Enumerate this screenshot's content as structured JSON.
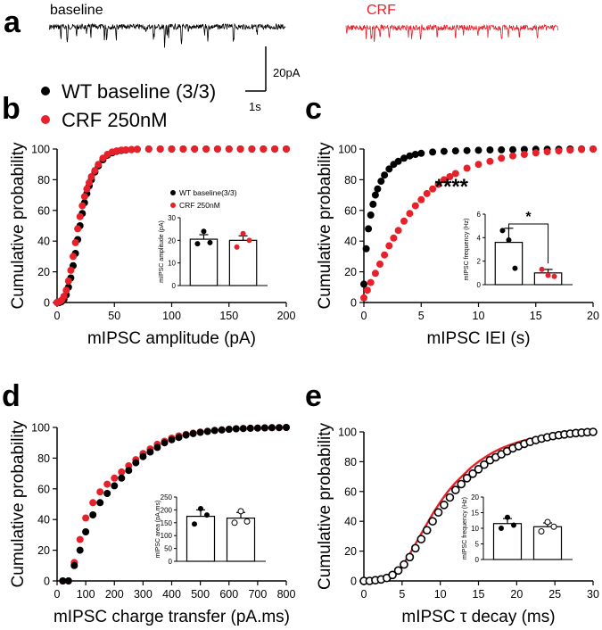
{
  "colors": {
    "wt": "#000000",
    "crf": "#e8202a",
    "axis": "#000000",
    "open_marker_fill": "#ffffff"
  },
  "panel_a": {
    "letter": "a",
    "traces": [
      {
        "label": "baseline",
        "color": "#000000"
      },
      {
        "label": "CRF",
        "color": "#e8202a"
      }
    ],
    "scalebar": {
      "y_label": "20pA",
      "x_label": "1s"
    }
  },
  "legend_main": [
    {
      "label": "WT baseline (3/3)",
      "color": "#000000"
    },
    {
      "label": "CRF 250nM",
      "color": "#e8202a"
    }
  ],
  "chart_data": [
    {
      "panel": "b",
      "type": "scatter",
      "xlabel": "mIPSC amplitude (pA)",
      "ylabel": "Cumulative probability",
      "xlim": [
        0,
        200
      ],
      "ylim": [
        0,
        100
      ],
      "xticks": [
        "0",
        "50",
        "100",
        "150",
        "200"
      ],
      "yticks": [
        "0",
        "20",
        "40",
        "60",
        "80",
        "100"
      ],
      "series": [
        {
          "name": "WT baseline (3/3)",
          "color": "#000000",
          "marker": "filled",
          "x": [
            0,
            2,
            4,
            6,
            8,
            10,
            12,
            14,
            16,
            18,
            20,
            22,
            24,
            26,
            28,
            30,
            33,
            36,
            40,
            44,
            48,
            52,
            56,
            60,
            65,
            70,
            80,
            90,
            100,
            110,
            120,
            130,
            140,
            150,
            160,
            170,
            180,
            190,
            200
          ],
          "y": [
            0,
            0,
            0.5,
            2,
            5,
            10,
            16,
            24,
            32,
            41,
            50,
            58,
            65,
            71,
            76,
            80,
            85,
            89,
            93,
            96,
            97.5,
            98.5,
            99,
            99.3,
            99.6,
            99.8,
            100,
            100,
            100,
            100,
            100,
            100,
            100,
            100,
            100,
            100,
            100,
            100,
            100
          ]
        },
        {
          "name": "CRF 250nM",
          "color": "#e8202a",
          "marker": "filled",
          "x": [
            0,
            2,
            4,
            6,
            8,
            10,
            12,
            14,
            16,
            18,
            20,
            22,
            24,
            26,
            28,
            30,
            33,
            36,
            40,
            44,
            48,
            52,
            56,
            60,
            65,
            70,
            80,
            90,
            100,
            110,
            120,
            130,
            140,
            150,
            160,
            170,
            180,
            190,
            200
          ],
          "y": [
            0,
            0.5,
            1.5,
            4,
            8,
            14,
            21,
            30,
            39,
            48,
            56,
            63,
            69,
            74,
            78,
            82,
            86,
            90,
            94,
            96.5,
            98,
            98.8,
            99.3,
            99.5,
            99.7,
            99.9,
            100,
            100,
            100,
            100,
            100,
            100,
            100,
            100,
            100,
            100,
            100,
            100,
            100
          ]
        }
      ],
      "inset": {
        "type": "bar",
        "ylabel": "mIPSC amplitude (pA)",
        "ylim": [
          0,
          30
        ],
        "yticks": [
          "0",
          "10",
          "20",
          "30"
        ],
        "legend": [
          "WT baseline(3/3)",
          "CRF 250nM"
        ],
        "categories": [
          "WT baseline(3/3)",
          "CRF 250nM"
        ],
        "values": [
          20.5,
          20
        ],
        "errors": [
          2,
          2
        ],
        "points": [
          [
            18.5,
            24,
            19
          ],
          [
            17,
            23,
            20
          ]
        ],
        "point_colors": [
          "#000000",
          "#e8202a"
        ],
        "point_style": "filled",
        "significance": ""
      }
    },
    {
      "panel": "c",
      "type": "scatter",
      "xlabel": "mIPSC IEI (s)",
      "ylabel": "Cumulative probability",
      "xlim": [
        0,
        20
      ],
      "ylim": [
        0,
        100
      ],
      "xticks": [
        "0",
        "5",
        "10",
        "15",
        "20"
      ],
      "yticks": [
        "0",
        "20",
        "40",
        "60",
        "80",
        "100"
      ],
      "annotation": "****",
      "series": [
        {
          "name": "WT baseline (3/3)",
          "color": "#000000",
          "marker": "filled",
          "x": [
            0,
            0.2,
            0.4,
            0.6,
            0.8,
            1,
            1.2,
            1.5,
            1.8,
            2.2,
            2.6,
            3,
            3.5,
            4,
            4.5,
            5,
            6,
            7,
            8,
            9,
            10,
            11,
            12,
            13,
            14,
            15,
            16,
            17,
            18,
            19,
            20
          ],
          "y": [
            12,
            35,
            48,
            57,
            64,
            70,
            74,
            79,
            83,
            87,
            90,
            92,
            94,
            95.5,
            96.5,
            97.2,
            98,
            98.5,
            98.8,
            99,
            99.2,
            99.4,
            99.5,
            99.6,
            99.7,
            99.8,
            99.9,
            99.9,
            100,
            100,
            100
          ]
        },
        {
          "name": "CRF 250nM",
          "color": "#e8202a",
          "marker": "filled",
          "x": [
            0,
            0.3,
            0.6,
            1,
            1.4,
            1.8,
            2.2,
            2.6,
            3,
            3.5,
            4,
            4.5,
            5,
            5.5,
            6,
            6.5,
            7,
            7.5,
            8,
            9,
            10,
            11,
            12,
            13,
            14,
            15,
            16,
            17,
            18,
            19,
            20
          ],
          "y": [
            3,
            8,
            13,
            19,
            25,
            31,
            37,
            42,
            47,
            53,
            58,
            63,
            67,
            71,
            74,
            77,
            80,
            82,
            84,
            87.5,
            90,
            92,
            94,
            95.5,
            96.5,
            97.5,
            98.2,
            98.8,
            99.3,
            99.7,
            100
          ]
        }
      ],
      "inset": {
        "type": "bar",
        "ylabel": "mIPSC frequency (Hz)",
        "ylim": [
          0,
          6
        ],
        "yticks": [
          "0",
          "2",
          "4",
          "6"
        ],
        "legend": [],
        "categories": [
          "WT baseline (3/3)",
          "CRF 250nM"
        ],
        "values": [
          3.6,
          1.0
        ],
        "errors": [
          1.2,
          0.3
        ],
        "points": [
          [
            4.6,
            3.8,
            1.4
          ],
          [
            1.3,
            0.8,
            0.7
          ]
        ],
        "point_colors": [
          "#000000",
          "#e8202a"
        ],
        "point_style": "filled",
        "significance": "*"
      }
    },
    {
      "panel": "d",
      "type": "scatter",
      "xlabel": "mIPSC charge transfer (pA.ms)",
      "ylabel": "Cumulative probability",
      "xlim": [
        0,
        800
      ],
      "ylim": [
        0,
        100
      ],
      "xticks": [
        "0",
        "100",
        "200",
        "300",
        "400",
        "500",
        "600",
        "700",
        "800"
      ],
      "yticks": [
        "0",
        "20",
        "40",
        "60",
        "80",
        "100"
      ],
      "series": [
        {
          "name": "CRF 250nM",
          "color": "#e8202a",
          "marker": "filled",
          "x": [
            20,
            40,
            60,
            80,
            100,
            125,
            150,
            175,
            200,
            225,
            250,
            275,
            300,
            325,
            350,
            375,
            400,
            425,
            450,
            475,
            500,
            525,
            550,
            575,
            600,
            625,
            650,
            675,
            700,
            725,
            750,
            775,
            800
          ],
          "y": [
            0,
            0,
            12,
            27,
            41,
            51,
            58,
            63,
            67,
            71,
            75,
            79,
            83,
            86,
            89,
            91,
            93,
            94.5,
            95.5,
            96.3,
            97,
            97.5,
            98,
            98.4,
            98.8,
            99.1,
            99.3,
            99.5,
            99.6,
            99.7,
            99.8,
            99.9,
            100
          ]
        },
        {
          "name": "WT baseline (3/3)",
          "color": "#000000",
          "marker": "filled",
          "x": [
            20,
            40,
            60,
            80,
            100,
            125,
            150,
            175,
            200,
            225,
            250,
            275,
            300,
            325,
            350,
            375,
            400,
            425,
            450,
            475,
            500,
            525,
            550,
            575,
            600,
            625,
            650,
            675,
            700,
            725,
            750,
            775,
            800
          ],
          "y": [
            0,
            0,
            10,
            20,
            32,
            43,
            51,
            57,
            62,
            67,
            72,
            77,
            81,
            84,
            87,
            90,
            92,
            93.5,
            95,
            96,
            96.8,
            97.4,
            98,
            98.4,
            98.8,
            99.1,
            99.3,
            99.5,
            99.6,
            99.7,
            99.8,
            99.9,
            100
          ]
        }
      ],
      "inset": {
        "type": "bar",
        "ylabel": "mIPSC area (pA.ms)",
        "ylim": [
          0,
          250
        ],
        "yticks": [
          "0",
          "50",
          "100",
          "150",
          "200",
          "250"
        ],
        "legend": [],
        "categories": [
          "WT baseline (3/3)",
          "CRF 250nM"
        ],
        "values": [
          175,
          168
        ],
        "errors": [
          25,
          22
        ],
        "points": [
          [
            145,
            205,
            180
          ],
          [
            150,
            195,
            155
          ]
        ],
        "point_colors": [
          "#000000",
          "#000000"
        ],
        "point_style": [
          "filled",
          "open"
        ],
        "significance": ""
      }
    },
    {
      "panel": "e",
      "type": "scatter",
      "xlabel": "mIPSC τ decay (ms)",
      "ylabel": "Cumulative probability",
      "xlim": [
        0,
        30
      ],
      "ylim": [
        0,
        100
      ],
      "xticks": [
        "0",
        "5",
        "10",
        "15",
        "20",
        "25",
        "30"
      ],
      "yticks": [
        "0",
        "20",
        "40",
        "60",
        "80",
        "100"
      ],
      "series": [
        {
          "name": "CRF 250nM",
          "color": "#e8202a",
          "marker": "line",
          "x": [
            0,
            1,
            2,
            3,
            4,
            5,
            6,
            7,
            8,
            9,
            10,
            11,
            12,
            13,
            14,
            15,
            16,
            17,
            18,
            19,
            20,
            21,
            22,
            23,
            24,
            25,
            26,
            27,
            28,
            29,
            30
          ],
          "y": [
            0,
            0.5,
            1,
            2,
            5,
            10,
            18,
            27,
            36,
            45,
            53,
            60,
            66,
            71,
            76,
            80,
            83.5,
            86.5,
            89,
            91,
            92.8,
            94.3,
            95.5,
            96.5,
            97.3,
            98,
            98.6,
            99.1,
            99.5,
            99.8,
            100
          ]
        },
        {
          "name": "WT baseline (3/3)",
          "color": "#000000",
          "marker": "open",
          "x": [
            0,
            0.75,
            1.5,
            2.25,
            3,
            3.75,
            4.5,
            5.25,
            6,
            6.75,
            7.5,
            8.25,
            9,
            9.75,
            10.5,
            11.25,
            12,
            12.75,
            13.5,
            14.25,
            15,
            15.75,
            16.5,
            17.25,
            18,
            18.75,
            19.5,
            20.25,
            21,
            21.75,
            22.5,
            23.25,
            24,
            24.75,
            25.5,
            26.25,
            27,
            27.75,
            28.5,
            29.25,
            30
          ],
          "y": [
            0,
            0,
            0.5,
            1,
            2,
            4,
            7,
            11,
            16,
            22,
            28,
            34,
            40,
            46,
            51,
            56,
            61,
            65,
            69,
            72,
            75,
            78,
            81,
            83,
            85,
            87,
            89,
            90.5,
            92,
            93.3,
            94.5,
            95.5,
            96.4,
            97.2,
            97.8,
            98.3,
            98.8,
            99.2,
            99.5,
            99.8,
            100
          ]
        }
      ],
      "inset": {
        "type": "bar",
        "ylabel": "mIPSC frequency (Hz)",
        "ylim": [
          0,
          20
        ],
        "yticks": [
          "0",
          "5",
          "10",
          "15",
          "20"
        ],
        "legend": [],
        "categories": [
          "WT baseline (3/3)",
          "CRF 250nM"
        ],
        "values": [
          11.5,
          10.5
        ],
        "errors": [
          1.6,
          1.2
        ],
        "points": [
          [
            10,
            13.5,
            11
          ],
          [
            9,
            12,
            10.5
          ]
        ],
        "point_colors": [
          "#000000",
          "#000000"
        ],
        "point_style": [
          "filled",
          "open"
        ],
        "significance": ""
      }
    }
  ]
}
